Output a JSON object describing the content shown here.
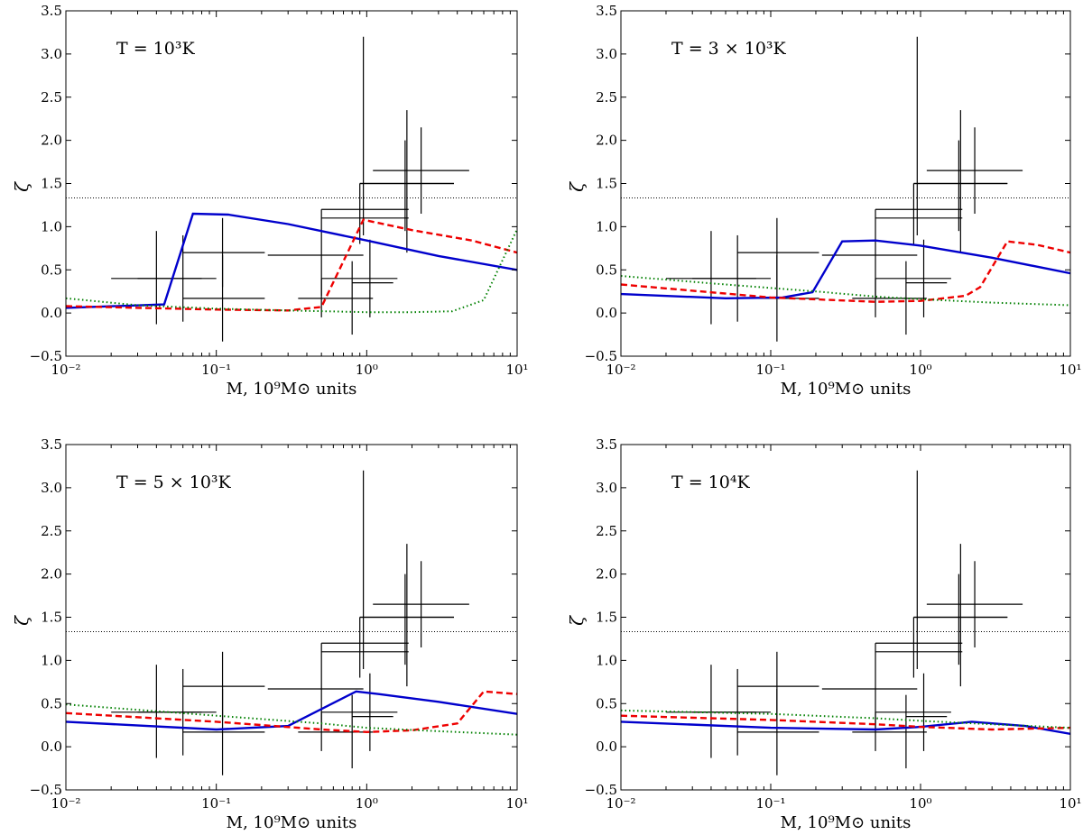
{
  "chart_data": [
    {
      "type": "line",
      "annotation": "T = 10³K",
      "xlabel": "M, 10⁹M⊙ units",
      "ylabel": "ζ",
      "xscale": "log",
      "xlim": [
        0.01,
        10
      ],
      "ylim": [
        -0.5,
        3.5
      ],
      "xticks": [
        "10⁻²",
        "10⁻¹",
        "10⁰",
        "10¹"
      ],
      "yticks": [
        "−0.5",
        "0.0",
        "0.5",
        "1.0",
        "1.5",
        "2.0",
        "2.5",
        "3.0",
        "3.5"
      ],
      "grid": false,
      "reference_line": 1.333,
      "series": [
        {
          "color": "#0000cc",
          "style": "solid",
          "x": [
            0.01,
            0.045,
            0.07,
            0.12,
            0.3,
            1.0,
            3.0,
            10.0
          ],
          "y": [
            0.06,
            0.1,
            1.15,
            1.14,
            1.03,
            0.84,
            0.66,
            0.5
          ]
        },
        {
          "color": "#ee0000",
          "style": "dashed",
          "x": [
            0.01,
            0.03,
            0.1,
            0.3,
            0.5,
            0.95,
            2.0,
            5.0,
            10.0
          ],
          "y": [
            0.08,
            0.06,
            0.04,
            0.03,
            0.07,
            1.08,
            0.96,
            0.84,
            0.7
          ]
        },
        {
          "color": "#008000",
          "style": "dotted",
          "x": [
            0.01,
            0.03,
            0.1,
            0.3,
            1.0,
            2.0,
            3.7,
            6.0,
            10.0
          ],
          "y": [
            0.17,
            0.09,
            0.05,
            0.03,
            0.01,
            0.01,
            0.02,
            0.15,
            0.97
          ]
        }
      ]
    },
    {
      "type": "line",
      "annotation": "T = 3 × 10³K",
      "xlabel": "M, 10⁹M⊙ units",
      "ylabel": "ζ",
      "xscale": "log",
      "xlim": [
        0.01,
        10
      ],
      "ylim": [
        -0.5,
        3.5
      ],
      "xticks": [
        "10⁻²",
        "10⁻¹",
        "10⁰",
        "10¹"
      ],
      "yticks": [
        "−0.5",
        "0.0",
        "0.5",
        "1.0",
        "1.5",
        "2.0",
        "2.5",
        "3.0",
        "3.5"
      ],
      "grid": false,
      "reference_line": 1.333,
      "series": [
        {
          "color": "#0000cc",
          "style": "solid",
          "x": [
            0.01,
            0.05,
            0.12,
            0.19,
            0.3,
            0.5,
            1.0,
            3.0,
            10.0
          ],
          "y": [
            0.22,
            0.17,
            0.18,
            0.24,
            0.83,
            0.84,
            0.78,
            0.64,
            0.46
          ]
        },
        {
          "color": "#ee0000",
          "style": "dashed",
          "x": [
            0.01,
            0.1,
            0.5,
            1.0,
            2.0,
            2.5,
            3.8,
            6.0,
            10.0
          ],
          "y": [
            0.33,
            0.18,
            0.13,
            0.14,
            0.2,
            0.3,
            0.83,
            0.79,
            0.7
          ]
        },
        {
          "color": "#008000",
          "style": "dotted",
          "x": [
            0.01,
            0.05,
            0.2,
            0.5,
            1.0,
            3.0,
            10.0
          ],
          "y": [
            0.43,
            0.33,
            0.25,
            0.19,
            0.16,
            0.12,
            0.09
          ]
        }
      ]
    },
    {
      "type": "line",
      "annotation": "T = 5 × 10³K",
      "xlabel": "M, 10⁹M⊙ units",
      "ylabel": "ζ",
      "xscale": "log",
      "xlim": [
        0.01,
        10
      ],
      "ylim": [
        -0.5,
        3.5
      ],
      "xticks": [
        "10⁻²",
        "10⁻¹",
        "10⁰",
        "10¹"
      ],
      "yticks": [
        "−0.5",
        "0.0",
        "0.5",
        "1.0",
        "1.5",
        "2.0",
        "2.5",
        "3.0",
        "3.5"
      ],
      "grid": false,
      "reference_line": 1.333,
      "series": [
        {
          "color": "#0000cc",
          "style": "solid",
          "x": [
            0.01,
            0.1,
            0.3,
            0.85,
            1.2,
            3.0,
            10.0
          ],
          "y": [
            0.29,
            0.2,
            0.24,
            0.64,
            0.61,
            0.52,
            0.38
          ]
        },
        {
          "color": "#ee0000",
          "style": "dashed",
          "x": [
            0.01,
            0.1,
            0.5,
            1.0,
            2.0,
            4.0,
            6.0,
            10.0
          ],
          "y": [
            0.39,
            0.29,
            0.2,
            0.17,
            0.19,
            0.27,
            0.64,
            0.61
          ]
        },
        {
          "color": "#008000",
          "style": "dotted",
          "x": [
            0.01,
            0.1,
            0.5,
            1.0,
            3.0,
            10.0
          ],
          "y": [
            0.49,
            0.36,
            0.27,
            0.22,
            0.18,
            0.14
          ]
        }
      ]
    },
    {
      "type": "line",
      "annotation": "T = 10⁴K",
      "xlabel": "M, 10⁹M⊙ units",
      "ylabel": "ζ",
      "xscale": "log",
      "xlim": [
        0.01,
        10
      ],
      "ylim": [
        -0.5,
        3.5
      ],
      "xticks": [
        "10⁻²",
        "10⁻¹",
        "10⁰",
        "10¹"
      ],
      "yticks": [
        "−0.5",
        "0.0",
        "0.5",
        "1.0",
        "1.5",
        "2.0",
        "2.5",
        "3.0",
        "3.5"
      ],
      "grid": false,
      "reference_line": 1.333,
      "series": [
        {
          "color": "#0000cc",
          "style": "solid",
          "x": [
            0.01,
            0.1,
            0.5,
            1.0,
            2.2,
            5.0,
            10.0
          ],
          "y": [
            0.29,
            0.22,
            0.2,
            0.23,
            0.29,
            0.24,
            0.15
          ]
        },
        {
          "color": "#ee0000",
          "style": "dashed",
          "x": [
            0.01,
            0.1,
            0.5,
            1.0,
            3.0,
            10.0
          ],
          "y": [
            0.36,
            0.31,
            0.26,
            0.23,
            0.2,
            0.22
          ]
        },
        {
          "color": "#008000",
          "style": "dotted",
          "x": [
            0.01,
            0.1,
            0.5,
            1.0,
            3.0,
            10.0
          ],
          "y": [
            0.42,
            0.38,
            0.33,
            0.3,
            0.26,
            0.22
          ]
        }
      ]
    }
  ],
  "observations": {
    "color": "#000000",
    "points": [
      {
        "x": 0.04,
        "y": 0.4,
        "xlo": 0.02,
        "xhi": 0.08,
        "ylo": -0.13,
        "yhi": 0.95
      },
      {
        "x": 0.06,
        "y": 0.4,
        "xlo": 0.03,
        "xhi": 0.1,
        "ylo": -0.1,
        "yhi": 0.9
      },
      {
        "x": 0.11,
        "y": 0.7,
        "xlo": 0.06,
        "xhi": 0.21,
        "ylo": 0.3,
        "yhi": 1.1
      },
      {
        "x": 0.11,
        "y": 0.17,
        "xlo": 0.06,
        "xhi": 0.21,
        "ylo": -0.33,
        "yhi": 0.67
      },
      {
        "x": 0.5,
        "y": 0.67,
        "xlo": 0.22,
        "xhi": 0.95,
        "ylo": 0.2,
        "yhi": 1.2
      },
      {
        "x": 0.8,
        "y": 0.4,
        "xlo": 0.5,
        "xhi": 1.6,
        "ylo": -0.25,
        "yhi": 0.6
      },
      {
        "x": 0.5,
        "y": 0.17,
        "xlo": 0.35,
        "xhi": 1.1,
        "ylo": -0.05,
        "yhi": 0.4
      },
      {
        "x": 0.9,
        "y": 1.2,
        "xlo": 0.5,
        "xhi": 1.9,
        "ylo": 0.8,
        "yhi": 1.5
      },
      {
        "x": 0.95,
        "y": 1.1,
        "xlo": 0.5,
        "xhi": 1.9,
        "ylo": 0.9,
        "yhi": 3.2
      },
      {
        "x": 1.05,
        "y": 0.35,
        "xlo": 0.8,
        "xhi": 1.5,
        "ylo": -0.05,
        "yhi": 0.85
      },
      {
        "x": 1.8,
        "y": 1.5,
        "xlo": 0.9,
        "xhi": 3.8,
        "ylo": 0.95,
        "yhi": 2.0
      },
      {
        "x": 1.85,
        "y": 1.5,
        "xlo": 0.9,
        "xhi": 3.8,
        "ylo": 0.7,
        "yhi": 2.35
      },
      {
        "x": 2.3,
        "y": 1.65,
        "xlo": 1.1,
        "xhi": 4.8,
        "ylo": 1.15,
        "yhi": 2.15
      }
    ]
  }
}
